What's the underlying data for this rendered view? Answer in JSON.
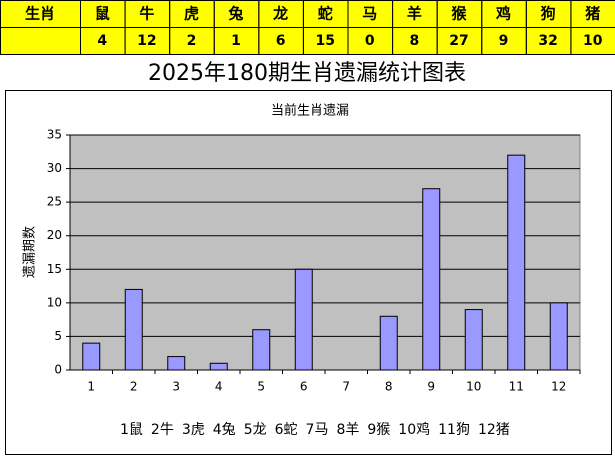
{
  "table": {
    "header": [
      "生肖",
      "鼠",
      "牛",
      "虎",
      "兔",
      "龙",
      "蛇",
      "马",
      "羊",
      "猴",
      "鸡",
      "狗",
      "猪"
    ]
  },
  "page_title": "2025年180期生肖遗漏统计图表",
  "chart_data": {
    "type": "bar",
    "title": "当前生肖遗漏",
    "y_label": "遗漏期数",
    "categories": [
      "1",
      "2",
      "3",
      "4",
      "5",
      "6",
      "7",
      "8",
      "9",
      "10",
      "11",
      "12"
    ],
    "values": [
      4,
      12,
      2,
      1,
      6,
      15,
      0,
      8,
      27,
      9,
      32,
      10
    ],
    "color": "#9999ff",
    "ylim": [
      0,
      35
    ],
    "yticks": [
      0,
      5,
      10,
      15,
      20,
      25,
      30,
      35
    ],
    "grid": true,
    "caption": [
      "1鼠",
      "2牛",
      "3虎",
      "4兔",
      "5龙",
      "6蛇",
      "7马",
      "8羊",
      "9猴",
      "10鸡",
      "11狗",
      "12猪"
    ]
  }
}
